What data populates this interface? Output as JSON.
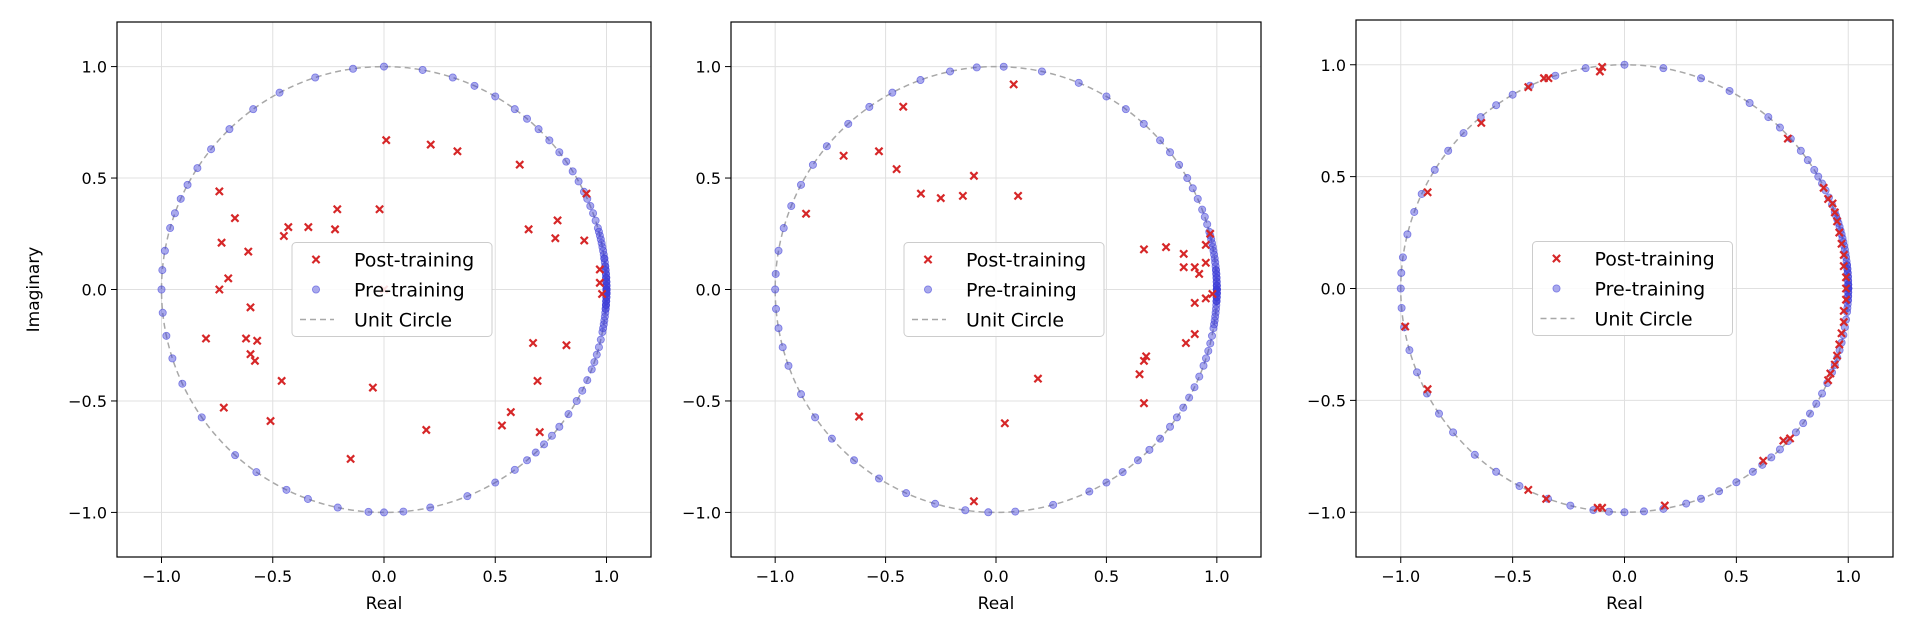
{
  "chart_data": [
    {
      "type": "scatter",
      "xlabel": "Real",
      "ylabel": "Imaginary",
      "xlim": [
        -1.2,
        1.2
      ],
      "ylim": [
        -1.2,
        1.2
      ],
      "xticks": [
        "−1.0",
        "−0.5",
        "0.0",
        "0.5",
        "1.0"
      ],
      "yticks": [
        "−1.0",
        "−0.5",
        "0.0",
        "0.5",
        "1.0"
      ],
      "grid": true,
      "legend_position": "center",
      "legend": [
        "Post-training",
        "Pre-training",
        "Unit Circle"
      ],
      "series": [
        {
          "name": "Post-training",
          "color": "#d62728",
          "marker": "x",
          "points": [
            [
              0.01,
              0.67
            ],
            [
              0.21,
              0.65
            ],
            [
              0.33,
              0.62
            ],
            [
              0.61,
              0.56
            ],
            [
              -0.74,
              0.44
            ],
            [
              -0.67,
              0.32
            ],
            [
              -0.21,
              0.36
            ],
            [
              -0.02,
              0.36
            ],
            [
              0.65,
              0.27
            ],
            [
              0.78,
              0.31
            ],
            [
              -0.61,
              0.17
            ],
            [
              -0.73,
              0.21
            ],
            [
              -0.43,
              0.28
            ],
            [
              -0.45,
              0.24
            ],
            [
              -0.34,
              0.28
            ],
            [
              -0.22,
              0.27
            ],
            [
              0.77,
              0.23
            ],
            [
              0.91,
              0.43
            ],
            [
              0.9,
              0.22
            ],
            [
              -0.7,
              0.05
            ],
            [
              -0.74,
              0.0
            ],
            [
              -0.6,
              -0.08
            ],
            [
              0.0,
              0.0
            ],
            [
              0.97,
              0.09
            ],
            [
              0.97,
              0.03
            ],
            [
              0.98,
              -0.02
            ],
            [
              -0.8,
              -0.22
            ],
            [
              -0.62,
              -0.22
            ],
            [
              -0.57,
              -0.23
            ],
            [
              -0.6,
              -0.29
            ],
            [
              -0.58,
              -0.32
            ],
            [
              0.67,
              -0.24
            ],
            [
              0.82,
              -0.25
            ],
            [
              -0.46,
              -0.41
            ],
            [
              -0.05,
              -0.44
            ],
            [
              0.69,
              -0.41
            ],
            [
              -0.72,
              -0.53
            ],
            [
              -0.51,
              -0.59
            ],
            [
              0.57,
              -0.55
            ],
            [
              0.53,
              -0.61
            ],
            [
              0.7,
              -0.64
            ],
            [
              0.19,
              -0.63
            ],
            [
              -0.15,
              -0.76
            ]
          ]
        },
        {
          "name": "Pre-training",
          "color": "#4040d8",
          "marker": "o",
          "on_unit_circle": true,
          "angles_deg": [
            0,
            0,
            0,
            0,
            0,
            0,
            1,
            1,
            1,
            2,
            2,
            2,
            3,
            3,
            3,
            4,
            4,
            5,
            5,
            6,
            6,
            7,
            8,
            8,
            9,
            10,
            11,
            12,
            13,
            14,
            15,
            16,
            18,
            20,
            22,
            24,
            26,
            29,
            32,
            35,
            38,
            42,
            46,
            50,
            54,
            60,
            66,
            72,
            80,
            90,
            98,
            108,
            118,
            126,
            134,
            141,
            147,
            152,
            156,
            160,
            164,
            170,
            175,
            180,
            186,
            192,
            198,
            205,
            215,
            228,
            235,
            244,
            250,
            258,
            266,
            270,
            275,
            282,
            292,
            300,
            306,
            310,
            313,
            316,
            319,
            322,
            326,
            330,
            333,
            336,
            339,
            341,
            343,
            345,
            347,
            349,
            350,
            351,
            352,
            353,
            354,
            355,
            355,
            356,
            356,
            357,
            357,
            358,
            358,
            359,
            359,
            359,
            359,
            359,
            -1,
            -2,
            -3,
            -4
          ]
        }
      ]
    },
    {
      "type": "scatter",
      "xlabel": "Real",
      "ylabel": "",
      "xlim": [
        -1.2,
        1.2
      ],
      "ylim": [
        -1.2,
        1.2
      ],
      "xticks": [
        "−1.0",
        "−0.5",
        "0.0",
        "0.5",
        "1.0"
      ],
      "yticks": [
        "−1.0",
        "−0.5",
        "0.0",
        "0.5",
        "1.0"
      ],
      "grid": true,
      "legend_position": "center",
      "legend": [
        "Post-training",
        "Pre-training",
        "Unit Circle"
      ],
      "series": [
        {
          "name": "Post-training",
          "color": "#d62728",
          "marker": "x",
          "points": [
            [
              0.08,
              0.92
            ],
            [
              -0.42,
              0.82
            ],
            [
              -0.69,
              0.6
            ],
            [
              -0.53,
              0.62
            ],
            [
              -0.45,
              0.54
            ],
            [
              -0.1,
              0.51
            ],
            [
              -0.34,
              0.43
            ],
            [
              -0.25,
              0.41
            ],
            [
              -0.15,
              0.42
            ],
            [
              0.1,
              0.42
            ],
            [
              -0.86,
              0.34
            ],
            [
              0.67,
              0.18
            ],
            [
              0.77,
              0.19
            ],
            [
              0.85,
              0.16
            ],
            [
              0.95,
              0.2
            ],
            [
              0.97,
              0.25
            ],
            [
              0.85,
              0.1
            ],
            [
              0.9,
              0.1
            ],
            [
              0.92,
              0.07
            ],
            [
              0.95,
              0.12
            ],
            [
              0.9,
              -0.06
            ],
            [
              0.95,
              -0.04
            ],
            [
              0.86,
              -0.24
            ],
            [
              0.9,
              -0.2
            ],
            [
              0.98,
              -0.02
            ],
            [
              0.68,
              -0.3
            ],
            [
              0.67,
              -0.32
            ],
            [
              0.65,
              -0.38
            ],
            [
              0.19,
              -0.4
            ],
            [
              0.67,
              -0.51
            ],
            [
              -0.62,
              -0.57
            ],
            [
              0.04,
              -0.6
            ],
            [
              -0.1,
              -0.95
            ]
          ]
        },
        {
          "name": "Pre-training",
          "color": "#4040d8",
          "marker": "o",
          "on_unit_circle": true,
          "angles_deg": [
            0,
            0,
            0,
            0,
            0,
            1,
            1,
            1,
            2,
            2,
            3,
            3,
            4,
            4,
            5,
            5,
            6,
            7,
            8,
            9,
            10,
            11,
            12,
            13,
            14,
            15,
            17,
            19,
            21,
            24,
            27,
            30,
            34,
            38,
            42,
            48,
            54,
            60,
            68,
            78,
            88,
            95,
            102,
            110,
            118,
            125,
            132,
            140,
            146,
            152,
            158,
            164,
            170,
            176,
            180,
            185,
            190,
            195,
            200,
            208,
            215,
            222,
            230,
            238,
            246,
            254,
            262,
            268,
            275,
            285,
            295,
            300,
            305,
            310,
            314,
            318,
            322,
            325,
            328,
            331,
            334,
            337,
            340,
            342,
            344,
            346,
            348,
            350,
            351,
            352,
            353,
            354,
            355,
            356,
            357,
            357,
            358,
            358,
            359,
            359,
            359,
            -1,
            -2,
            -3
          ]
        }
      ]
    },
    {
      "type": "scatter",
      "xlabel": "Real",
      "ylabel": "",
      "xlim": [
        -1.2,
        1.2
      ],
      "ylim": [
        -1.2,
        1.2
      ],
      "xticks": [
        "−1.0",
        "−0.5",
        "0.0",
        "0.5",
        "1.0"
      ],
      "yticks": [
        "−1.0",
        "−0.5",
        "0.0",
        "0.5",
        "1.0"
      ],
      "grid": true,
      "legend_position": "center",
      "legend": [
        "Post-training",
        "Pre-training",
        "Unit Circle"
      ],
      "series": [
        {
          "name": "Post-training",
          "color": "#d62728",
          "marker": "x",
          "points": [
            [
              -0.1,
              0.99
            ],
            [
              -0.11,
              0.97
            ],
            [
              -0.34,
              0.94
            ],
            [
              -0.36,
              0.94
            ],
            [
              -0.43,
              0.9
            ],
            [
              -0.64,
              0.74
            ],
            [
              -0.88,
              0.43
            ],
            [
              0.73,
              0.67
            ],
            [
              0.89,
              0.45
            ],
            [
              0.91,
              0.4
            ],
            [
              0.93,
              0.38
            ],
            [
              0.94,
              0.34
            ],
            [
              0.95,
              0.3
            ],
            [
              0.96,
              0.25
            ],
            [
              0.97,
              0.2
            ],
            [
              0.98,
              0.15
            ],
            [
              0.98,
              0.1
            ],
            [
              0.99,
              0.05
            ],
            [
              0.99,
              0.0
            ],
            [
              0.99,
              -0.05
            ],
            [
              0.98,
              -0.1
            ],
            [
              0.98,
              -0.15
            ],
            [
              0.97,
              -0.2
            ],
            [
              0.96,
              -0.25
            ],
            [
              0.95,
              -0.3
            ],
            [
              0.94,
              -0.34
            ],
            [
              0.92,
              -0.38
            ],
            [
              0.91,
              -0.41
            ],
            [
              -0.98,
              -0.17
            ],
            [
              -0.88,
              -0.45
            ],
            [
              0.62,
              -0.77
            ],
            [
              0.74,
              -0.67
            ],
            [
              0.71,
              -0.68
            ],
            [
              -0.43,
              -0.9
            ],
            [
              -0.35,
              -0.94
            ],
            [
              -0.12,
              -0.98
            ],
            [
              -0.1,
              -0.98
            ],
            [
              0.18,
              -0.97
            ]
          ]
        },
        {
          "name": "Pre-training",
          "color": "#4040d8",
          "marker": "o",
          "on_unit_circle": true,
          "angles_deg": [
            0,
            0,
            0,
            0,
            0,
            1,
            1,
            1,
            2,
            2,
            3,
            3,
            4,
            4,
            5,
            5,
            6,
            6,
            7,
            8,
            9,
            10,
            11,
            12,
            13,
            14,
            15,
            16,
            17,
            18,
            19,
            20,
            22,
            24,
            26,
            28,
            30,
            32,
            35,
            38,
            42,
            46,
            50,
            56,
            62,
            70,
            80,
            90,
            100,
            108,
            115,
            120,
            125,
            130,
            136,
            142,
            148,
            155,
            160,
            166,
            172,
            176,
            180,
            185,
            190,
            196,
            202,
            208,
            214,
            220,
            228,
            235,
            242,
            250,
            256,
            262,
            266,
            270,
            275,
            280,
            286,
            290,
            295,
            300,
            305,
            308,
            311,
            314,
            317,
            320,
            323,
            326,
            329,
            332,
            335,
            338,
            340,
            342,
            344,
            346,
            348,
            350,
            352,
            354,
            355,
            356,
            357,
            358,
            359,
            -1,
            -2,
            -3
          ]
        }
      ]
    }
  ]
}
